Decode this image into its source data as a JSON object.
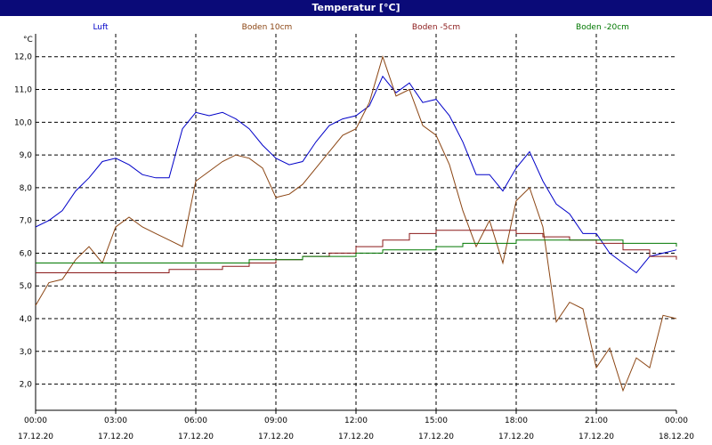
{
  "window": {
    "title": "Temperatur [°C]"
  },
  "chart_data": {
    "type": "line",
    "title": "Temperatur [°C]",
    "ylabel": "°C",
    "ylim": [
      1.2,
      12.7
    ],
    "yticks": [
      2.0,
      3.0,
      4.0,
      5.0,
      6.0,
      7.0,
      8.0,
      9.0,
      10.0,
      11.0,
      12.0
    ],
    "ytick_labels": [
      "2,0",
      "3,0",
      "4,0",
      "5,0",
      "6,0",
      "7,0",
      "8,0",
      "9,0",
      "10,0",
      "11,0",
      "12,0"
    ],
    "xlim": [
      0,
      24
    ],
    "xticks": [
      0,
      3,
      6,
      9,
      12,
      15,
      18,
      21,
      24
    ],
    "xtick_labels": [
      [
        "00:00",
        "17.12.20"
      ],
      [
        "03:00",
        "17.12.20"
      ],
      [
        "06:00",
        "17.12.20"
      ],
      [
        "09:00",
        "17.12.20"
      ],
      [
        "12:00",
        "17.12.20"
      ],
      [
        "15:00",
        "17.12.20"
      ],
      [
        "18:00",
        "17.12.20"
      ],
      [
        "21:00",
        "17.12.20"
      ],
      [
        "00:00",
        "18.12.20"
      ]
    ],
    "grid": true,
    "legend_position": "top",
    "series": [
      {
        "name": "Luft",
        "color": "#0000c8",
        "x": [
          0,
          0.5,
          1,
          1.5,
          2,
          2.5,
          3,
          3.5,
          4,
          4.5,
          5,
          5.5,
          6,
          6.5,
          7,
          7.5,
          8,
          8.5,
          9,
          9.5,
          10,
          10.5,
          11,
          11.5,
          12,
          12.5,
          13,
          13.5,
          14,
          14.5,
          15,
          15.5,
          16,
          16.5,
          17,
          17.5,
          18,
          18.5,
          19,
          19.5,
          20,
          20.5,
          21,
          21.5,
          22,
          22.5,
          23,
          23.5,
          24
        ],
        "y": [
          6.8,
          7.0,
          7.3,
          7.9,
          8.3,
          8.8,
          8.9,
          8.7,
          8.4,
          8.3,
          8.3,
          9.8,
          10.3,
          10.2,
          10.3,
          10.1,
          9.8,
          9.3,
          8.9,
          8.7,
          8.8,
          9.4,
          9.9,
          10.1,
          10.2,
          10.5,
          11.4,
          10.9,
          11.2,
          10.6,
          10.7,
          10.2,
          9.4,
          8.4,
          8.4,
          7.9,
          8.6,
          9.1,
          8.2,
          7.5,
          7.2,
          6.6,
          6.6,
          6.0,
          5.7,
          5.4,
          5.9,
          6.0,
          6.1
        ]
      },
      {
        "name": "Boden 10cm",
        "color": "#8b4513",
        "x": [
          0,
          0.5,
          1,
          1.5,
          2,
          2.5,
          3,
          3.5,
          4,
          4.5,
          5,
          5.5,
          6,
          6.5,
          7,
          7.5,
          8,
          8.5,
          9,
          9.5,
          10,
          10.5,
          11,
          11.5,
          12,
          12.5,
          13,
          13.5,
          14,
          14.5,
          15,
          15.5,
          16,
          16.5,
          17,
          17.5,
          18,
          18.5,
          19,
          19.5,
          20,
          20.5,
          21,
          21.5,
          22,
          22.5,
          23,
          23.5,
          24
        ],
        "y": [
          4.4,
          5.1,
          5.2,
          5.8,
          6.2,
          5.7,
          6.8,
          7.1,
          6.8,
          6.6,
          6.4,
          6.2,
          8.2,
          8.5,
          8.8,
          9.0,
          8.9,
          8.6,
          7.7,
          7.8,
          8.1,
          8.6,
          9.1,
          9.6,
          9.8,
          10.6,
          12.0,
          10.8,
          11.0,
          9.9,
          9.6,
          8.7,
          7.3,
          6.2,
          7.0,
          5.7,
          7.6,
          8.0,
          6.8,
          3.9,
          4.5,
          4.3,
          2.5,
          3.1,
          1.8,
          2.8,
          2.5,
          4.1,
          4.0
        ]
      },
      {
        "name": "Boden -5cm",
        "color": "#8b1a1a",
        "x": [
          0,
          2,
          4,
          5,
          6,
          7,
          8,
          9,
          10,
          11,
          12,
          13,
          14,
          15,
          16,
          17,
          18,
          19,
          20,
          21,
          22,
          23,
          24
        ],
        "y": [
          5.4,
          5.4,
          5.4,
          5.5,
          5.5,
          5.6,
          5.7,
          5.8,
          5.9,
          6.0,
          6.2,
          6.4,
          6.6,
          6.7,
          6.7,
          6.7,
          6.6,
          6.5,
          6.4,
          6.3,
          6.1,
          5.9,
          5.8
        ]
      },
      {
        "name": "Boden -20cm",
        "color": "#007800",
        "x": [
          0,
          2,
          4,
          6,
          7,
          8,
          9,
          10,
          11,
          12,
          13,
          14,
          15,
          16,
          17,
          18,
          19,
          20,
          21,
          22,
          23,
          24
        ],
        "y": [
          5.7,
          5.7,
          5.7,
          5.7,
          5.7,
          5.8,
          5.8,
          5.9,
          5.9,
          6.0,
          6.1,
          6.1,
          6.2,
          6.3,
          6.3,
          6.4,
          6.4,
          6.4,
          6.4,
          6.3,
          6.3,
          6.2
        ]
      }
    ]
  }
}
